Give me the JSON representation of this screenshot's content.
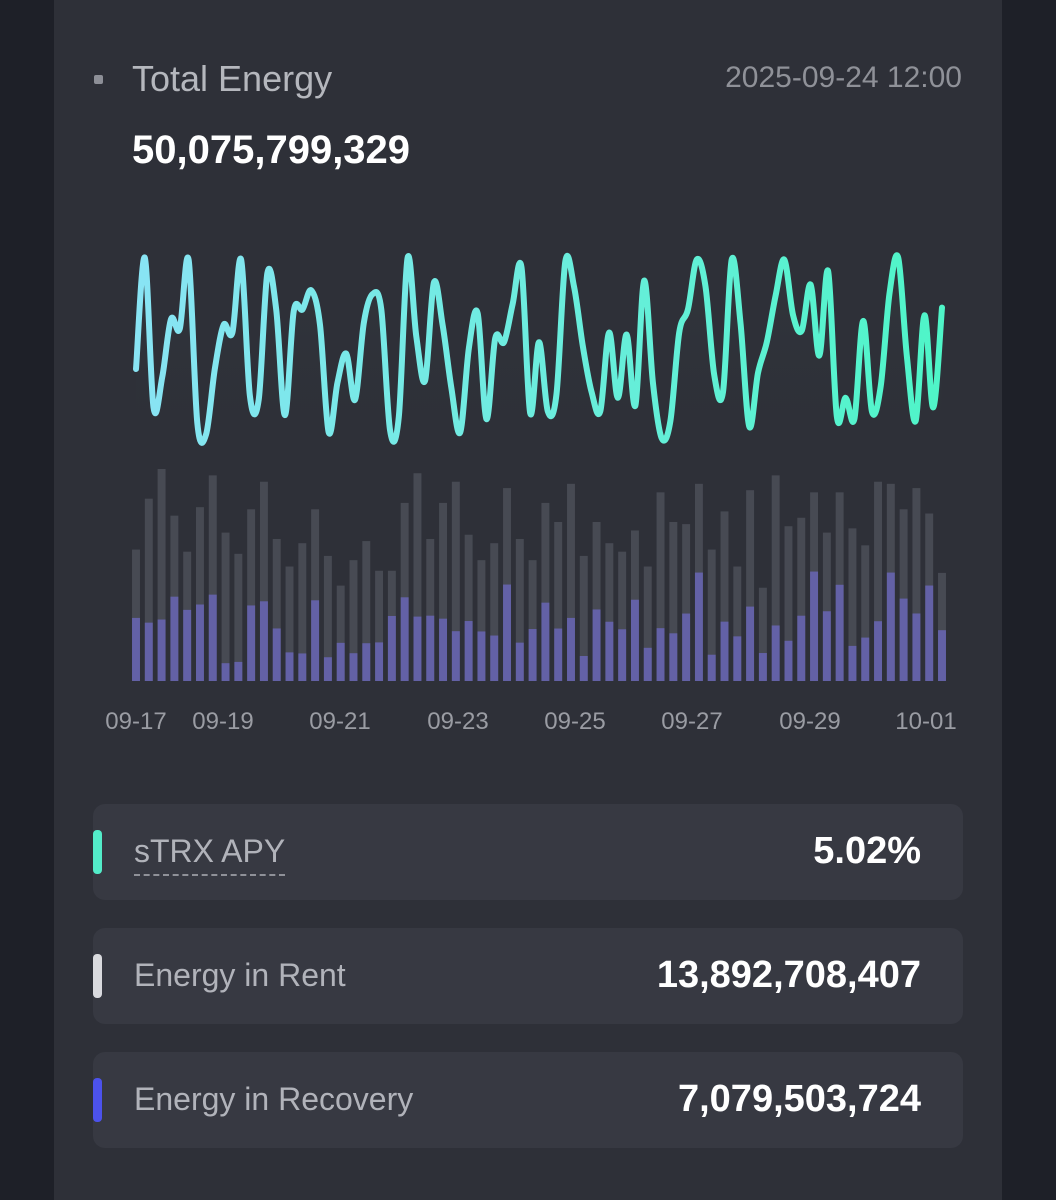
{
  "header": {
    "title": "Total Energy",
    "timestamp": "2025-09-24 12:00"
  },
  "total_value": "50,075,799,329",
  "colors": {
    "background": "#1e2028",
    "panel": "#2e3038",
    "card": "#373942",
    "line_gradient_start": "#89e4f4",
    "line_gradient_end": "#4ff5c8",
    "bar_total": "#474a53",
    "bar_recovery": "#6361a6",
    "marker_apy": "#53ecc9",
    "marker_rent": "#d9dade",
    "marker_recovery": "#4c52ec"
  },
  "chart_data": {
    "type": "line+bar",
    "x_tick_labels": [
      "09-17",
      "09-19",
      "09-21",
      "09-23",
      "09-25",
      "09-27",
      "09-29",
      "10-01"
    ],
    "line": [
      0.38,
      0.96,
      0.18,
      0.34,
      0.64,
      0.59,
      0.95,
      0.1,
      0.04,
      0.38,
      0.61,
      0.57,
      0.95,
      0.24,
      0.22,
      0.88,
      0.69,
      0.14,
      0.68,
      0.69,
      0.79,
      0.61,
      0.05,
      0.31,
      0.46,
      0.22,
      0.62,
      0.77,
      0.69,
      0.06,
      0.13,
      0.96,
      0.55,
      0.32,
      0.83,
      0.61,
      0.28,
      0.05,
      0.49,
      0.67,
      0.12,
      0.54,
      0.52,
      0.72,
      0.91,
      0.15,
      0.52,
      0.16,
      0.25,
      0.94,
      0.81,
      0.5,
      0.26,
      0.16,
      0.57,
      0.23,
      0.56,
      0.19,
      0.84,
      0.31,
      0.02,
      0.11,
      0.57,
      0.69,
      0.95,
      0.81,
      0.35,
      0.26,
      0.95,
      0.62,
      0.08,
      0.36,
      0.52,
      0.76,
      0.95,
      0.66,
      0.58,
      0.82,
      0.45,
      0.89,
      0.13,
      0.23,
      0.12,
      0.63,
      0.16,
      0.29,
      0.77,
      0.96,
      0.44,
      0.11,
      0.66,
      0.18,
      0.7
    ],
    "bars_total": [
      0.62,
      0.86,
      1.0,
      0.78,
      0.61,
      0.82,
      0.97,
      0.7,
      0.6,
      0.81,
      0.94,
      0.67,
      0.54,
      0.65,
      0.81,
      0.59,
      0.45,
      0.57,
      0.66,
      0.52,
      0.52,
      0.84,
      0.98,
      0.67,
      0.84,
      0.94,
      0.69,
      0.57,
      0.65,
      0.91,
      0.67,
      0.57,
      0.84,
      0.75,
      0.93,
      0.59,
      0.75,
      0.65,
      0.61,
      0.71,
      0.54,
      0.89,
      0.75,
      0.74,
      0.93,
      0.62,
      0.8,
      0.54,
      0.9,
      0.44,
      0.97,
      0.73,
      0.77,
      0.89,
      0.7,
      0.89,
      0.72,
      0.64,
      0.94,
      0.93,
      0.81,
      0.91,
      0.79,
      0.51
    ],
    "bars_recovery": [
      0.48,
      0.32,
      0.29,
      0.51,
      0.55,
      0.44,
      0.42,
      0.12,
      0.15,
      0.44,
      0.4,
      0.37,
      0.25,
      0.2,
      0.47,
      0.19,
      0.4,
      0.23,
      0.27,
      0.35,
      0.59,
      0.47,
      0.31,
      0.46,
      0.35,
      0.25,
      0.41,
      0.41,
      0.33,
      0.5,
      0.27,
      0.43,
      0.44,
      0.33,
      0.32,
      0.2,
      0.45,
      0.43,
      0.4,
      0.54,
      0.29,
      0.28,
      0.3,
      0.43,
      0.55,
      0.2,
      0.35,
      0.39,
      0.39,
      0.3,
      0.27,
      0.26,
      0.4,
      0.58,
      0.47,
      0.51,
      0.23,
      0.32,
      0.3,
      0.55,
      0.48,
      0.35,
      0.57,
      0.47
    ],
    "grid": false,
    "legend": "none"
  },
  "stats": [
    {
      "label": "sTRX APY",
      "value": "5.02%"
    },
    {
      "label": "Energy in Rent",
      "value": "13,892,708,407"
    },
    {
      "label": "Energy in Recovery",
      "value": "7,079,503,724"
    }
  ]
}
